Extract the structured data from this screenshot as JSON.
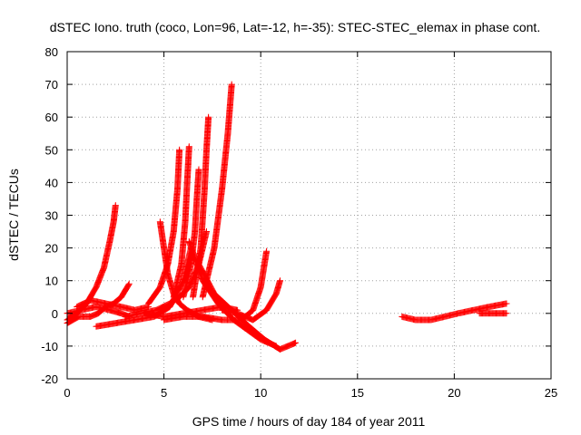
{
  "chart_data": {
    "type": "scatter",
    "title": "dSTEC Iono. truth (coco, Lon=96, Lat=-12, h=-35): STEC-STEC_elemax in phase cont.",
    "xlabel": "GPS time / hours of day 184 of year 2011",
    "ylabel": "dSTEC  / TECUs",
    "xlim": [
      0,
      25
    ],
    "ylim": [
      -20,
      80
    ],
    "xticks": [
      "0",
      "5",
      "10",
      "15",
      "20",
      "25"
    ],
    "yticks": [
      "-20",
      "-10",
      "0",
      "10",
      "20",
      "30",
      "40",
      "50",
      "60",
      "70",
      "80"
    ],
    "grid": true,
    "marker": "+",
    "color": "#ff0000",
    "series": [
      {
        "x": [
          0.0,
          0.5,
          1.0,
          1.5,
          1.9,
          2.2,
          2.4,
          2.5
        ],
        "y": [
          -2,
          0,
          3,
          8,
          14,
          22,
          28,
          33
        ]
      },
      {
        "x": [
          0.0,
          0.6,
          1.2,
          1.6,
          2.0,
          2.4,
          2.8,
          3.2
        ],
        "y": [
          -3,
          -1,
          -1,
          0,
          2,
          3,
          5,
          9
        ]
      },
      {
        "x": [
          0.0,
          0.7,
          1.5,
          2.2,
          2.8,
          3.2
        ],
        "y": [
          0,
          1,
          2,
          1,
          0,
          -1
        ]
      },
      {
        "x": [
          0.5,
          1.2,
          2.0,
          2.8,
          3.5,
          4.2
        ],
        "y": [
          2,
          4,
          3,
          2,
          1,
          2
        ]
      },
      {
        "x": [
          1.5,
          2.5,
          3.5,
          4.5,
          5.3,
          6.0,
          6.4
        ],
        "y": [
          -4,
          -3,
          -2,
          -1,
          2,
          10,
          20
        ]
      },
      {
        "x": [
          3.0,
          3.8,
          4.6,
          5.3,
          5.8,
          6.3,
          6.8,
          7.2
        ],
        "y": [
          -1,
          0,
          1,
          3,
          5,
          8,
          15,
          25
        ]
      },
      {
        "x": [
          4.8,
          5.0,
          5.2,
          5.5,
          5.8,
          6.2,
          6.8,
          7.5
        ],
        "y": [
          28,
          20,
          12,
          6,
          3,
          1,
          -1,
          -2
        ]
      },
      {
        "x": [
          4.2,
          4.8,
          5.2,
          5.5,
          5.7,
          5.8
        ],
        "y": [
          3,
          8,
          15,
          25,
          38,
          50
        ]
      },
      {
        "x": [
          5.5,
          5.9,
          6.1,
          6.2,
          6.3
        ],
        "y": [
          5,
          15,
          28,
          40,
          51
        ]
      },
      {
        "x": [
          6.0,
          6.4,
          6.6,
          6.7,
          6.8
        ],
        "y": [
          5,
          15,
          25,
          35,
          44
        ]
      },
      {
        "x": [
          6.5,
          6.9,
          7.1,
          7.2,
          7.3
        ],
        "y": [
          5,
          20,
          38,
          50,
          60
        ]
      },
      {
        "x": [
          7.0,
          7.6,
          8.0,
          8.3,
          8.5
        ],
        "y": [
          5,
          20,
          38,
          55,
          70
        ]
      },
      {
        "x": [
          6.3,
          7.0,
          7.8,
          8.6,
          9.3,
          10.0,
          10.8
        ],
        "y": [
          22,
          10,
          3,
          -2,
          -5,
          -8,
          -10
        ]
      },
      {
        "x": [
          6.8,
          7.6,
          8.5,
          9.4,
          10.2,
          11.0,
          11.8
        ],
        "y": [
          15,
          6,
          1,
          -4,
          -8,
          -11,
          -9
        ]
      },
      {
        "x": [
          4.0,
          5.0,
          6.0,
          7.0,
          8.0,
          8.8
        ],
        "y": [
          0,
          -1,
          0,
          1,
          2,
          1
        ]
      },
      {
        "x": [
          5.0,
          6.0,
          7.0,
          8.0,
          9.0,
          9.6,
          10.0,
          10.3
        ],
        "y": [
          -2,
          -1,
          -1,
          -2,
          -2,
          1,
          8,
          19
        ]
      },
      {
        "x": [
          8.0,
          8.8,
          9.6,
          10.3,
          10.8,
          11.0
        ],
        "y": [
          1,
          0,
          -2,
          1,
          6,
          10
        ]
      },
      {
        "x": [
          17.3,
          18.0,
          18.8,
          19.5,
          20.2,
          21.0,
          21.8,
          22.7
        ],
        "y": [
          -1,
          -2,
          -2,
          -1,
          0,
          1,
          2,
          3
        ]
      },
      {
        "x": [
          21.3,
          22.0,
          22.7
        ],
        "y": [
          0,
          0,
          0
        ]
      }
    ]
  }
}
